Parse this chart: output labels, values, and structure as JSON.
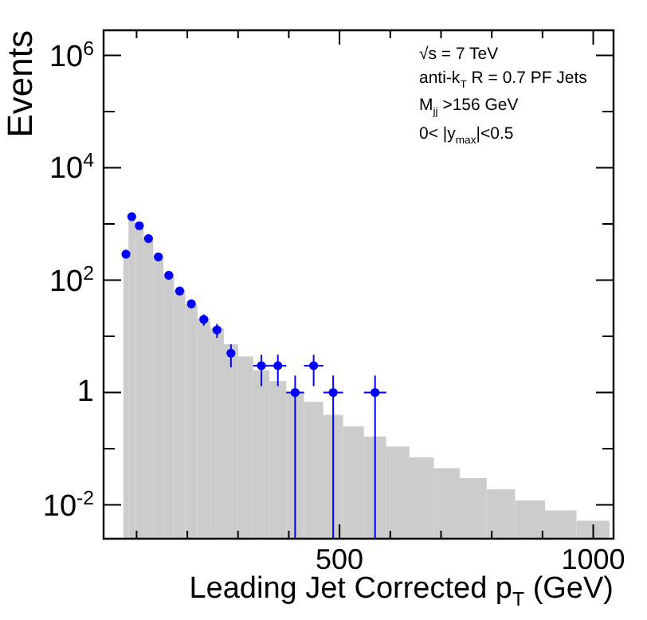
{
  "chart_data": {
    "type": "histogram",
    "xlabel": "Leading Jet Corrected p$_{T}$ (GeV)",
    "ylabel": "Events",
    "annotations": [
      "√s = 7 TeV",
      "anti-k$_{T}$ R = 0.7 PF Jets",
      "M$_{jj}$ >156 GeV",
      "0<  |y$_{max}$|<0.5"
    ],
    "xlim": [
      35,
      1040
    ],
    "ylim": [
      0.0025,
      2800000
    ],
    "xticks": [
      {
        "value": 100,
        "label": null
      },
      {
        "value": 200,
        "label": null
      },
      {
        "value": 300,
        "label": null
      },
      {
        "value": 400,
        "label": null
      },
      500,
      {
        "value": 600,
        "label": null
      },
      {
        "value": 700,
        "label": null
      },
      {
        "value": 800,
        "label": null
      },
      {
        "value": 900,
        "label": null
      },
      1000
    ],
    "yticks": [
      {
        "value": 0.01,
        "label": "10$^{-2}$"
      },
      {
        "value": 0.1,
        "label": null
      },
      1,
      {
        "value": 10,
        "label": null
      },
      {
        "value": 100,
        "label": "10$^{2}$"
      },
      {
        "value": 1000,
        "label": null
      },
      {
        "value": 10000,
        "label": "10$^{4}$"
      },
      {
        "value": 100000,
        "label": null
      },
      {
        "value": 1000000,
        "label": "10$^{6}$"
      }
    ],
    "log": "y",
    "grid": false,
    "legend": false,
    "series": [
      {
        "type": "histogram",
        "color": "#cccccc",
        "bins": [
          74,
          84,
          97,
          114,
          133,
          153,
          174,
          196,
          220,
          245,
          272,
          300,
          330,
          362,
          395,
          430,
          468,
          507,
          548,
          592,
          638,
          686,
          737,
          790,
          846,
          905,
          967,
          1032
        ],
        "values": [
          300,
          1400,
          940,
          580,
          270,
          130,
          67,
          37,
          21,
          14,
          7.2,
          4.4,
          2.5,
          1.6,
          1.0,
          0.68,
          0.4,
          0.25,
          0.165,
          0.11,
          0.07,
          0.045,
          0.03,
          0.019,
          0.012,
          0.008,
          0.0052
        ]
      },
      {
        "type": "scatter",
        "color": "#0000ff",
        "marker": "circle",
        "x": [
          79,
          90.5,
          105.5,
          123.5,
          143,
          163.5,
          185,
          208,
          232.5,
          258.5,
          286,
          346,
          378.5,
          412.5,
          449,
          487.5,
          570
        ],
        "values": [
          290,
          1350,
          930,
          550,
          260,
          122,
          64,
          38,
          20,
          13,
          5,
          3,
          3,
          1,
          3,
          1,
          1
        ],
        "errors": [
          17,
          37,
          30,
          23,
          16,
          11,
          8,
          6.2,
          4.5,
          3.6,
          2.2,
          1.7,
          1.7,
          [
            0.0025,
            2
          ],
          1.7,
          [
            0.0025,
            2
          ],
          [
            0.0025,
            2
          ]
        ],
        "xerrors": [
          null,
          null,
          null,
          null,
          null,
          null,
          null,
          null,
          null,
          null,
          null,
          16,
          16.5,
          17.5,
          19,
          19.5,
          22
        ]
      }
    ]
  }
}
